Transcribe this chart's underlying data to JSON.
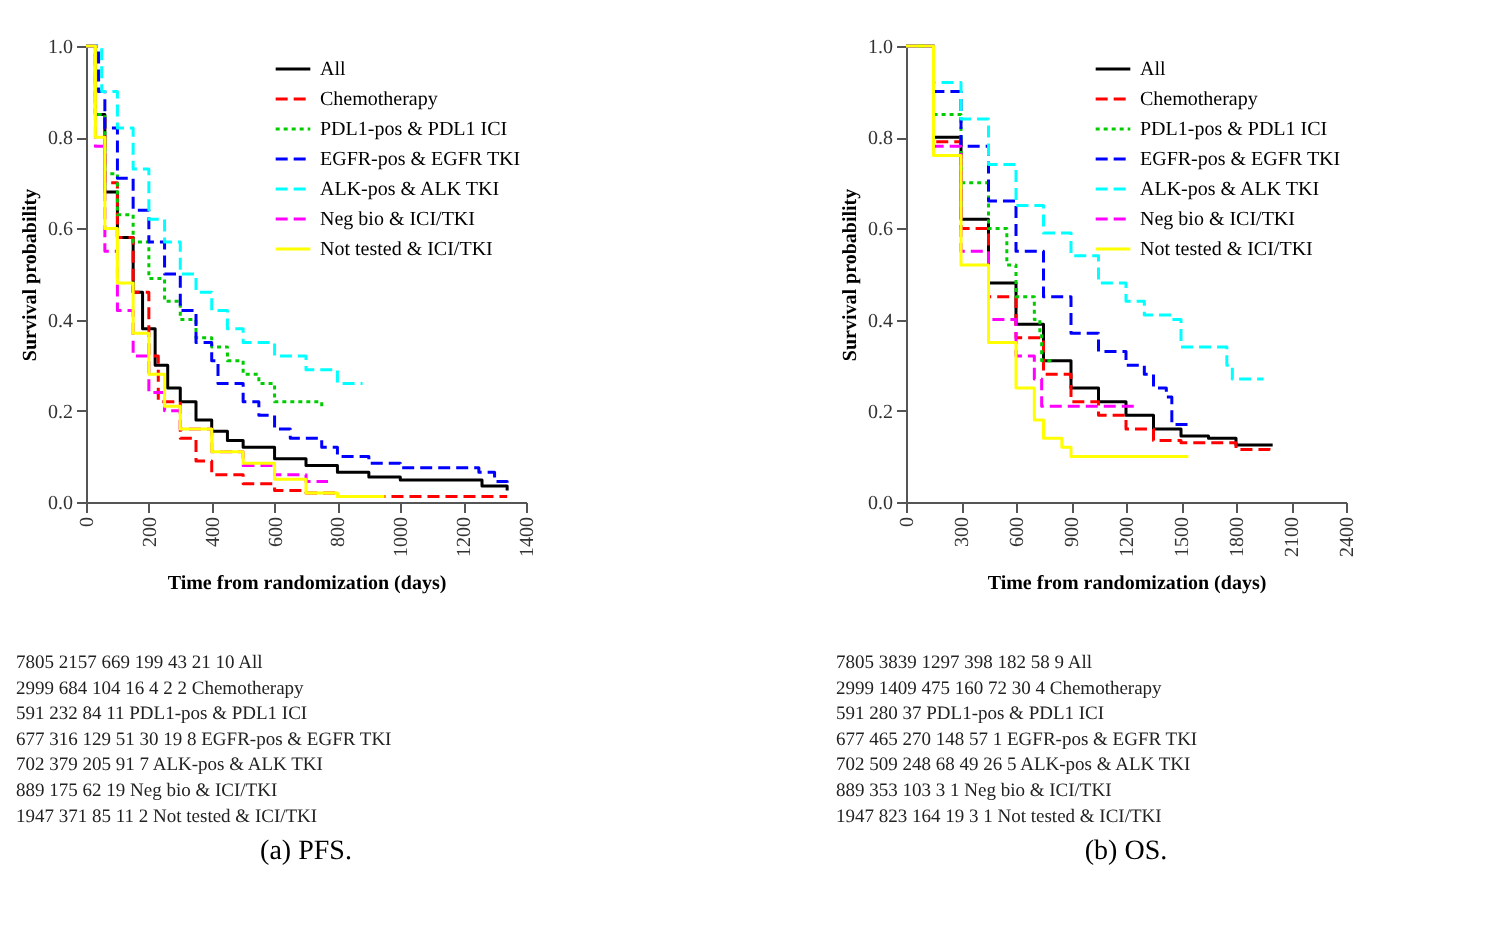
{
  "chart_data": [
    {
      "type": "step",
      "title": "(a) PFS.",
      "xlabel": "Time from randomization (days)",
      "ylabel": "Survival probability",
      "xlim": [
        0,
        1400
      ],
      "ylim": [
        0,
        1
      ],
      "xticks": [
        0,
        200,
        400,
        600,
        800,
        1000,
        1200,
        1400
      ],
      "yticks": [
        {
          "value": 0,
          "label": "0.0"
        },
        {
          "value": 0.2,
          "label": "0.2"
        },
        {
          "value": 0.4,
          "label": "0.4"
        },
        {
          "value": 0.6,
          "label": "0.6"
        },
        {
          "value": 0.8,
          "label": "0.8"
        },
        {
          "value": 1,
          "label": "1.0"
        }
      ],
      "legend": "top right",
      "series": [
        {
          "name": "All",
          "color": "#000000",
          "line_style": "solid",
          "x": [
            0,
            30,
            60,
            100,
            150,
            180,
            220,
            260,
            300,
            350,
            400,
            450,
            500,
            600,
            700,
            800,
            900,
            1000,
            1260,
            1340
          ],
          "values": [
            1.0,
            0.85,
            0.68,
            0.58,
            0.46,
            0.38,
            0.3,
            0.25,
            0.22,
            0.18,
            0.155,
            0.135,
            0.12,
            0.095,
            0.08,
            0.065,
            0.055,
            0.048,
            0.035,
            0.025
          ]
        },
        {
          "name": "Chemotherapy",
          "color": "#ff0000",
          "line_style": "dashed",
          "x": [
            0,
            30,
            60,
            100,
            150,
            200,
            230,
            300,
            350,
            400,
            500,
            600,
            700,
            800,
            1340
          ],
          "values": [
            1.0,
            0.85,
            0.7,
            0.58,
            0.46,
            0.32,
            0.22,
            0.14,
            0.09,
            0.06,
            0.04,
            0.025,
            0.02,
            0.012,
            0.012
          ]
        },
        {
          "name": "PDL1-pos & PDL1 ICI",
          "color": "#00cc00",
          "line_style": "dotted",
          "x": [
            0,
            30,
            60,
            100,
            150,
            200,
            250,
            300,
            350,
            400,
            450,
            500,
            550,
            600,
            750
          ],
          "values": [
            1.0,
            0.85,
            0.72,
            0.63,
            0.57,
            0.49,
            0.44,
            0.4,
            0.36,
            0.34,
            0.31,
            0.28,
            0.26,
            0.22,
            0.21
          ]
        },
        {
          "name": "EGFR-pos & EGFR TKI",
          "color": "#0000ff",
          "line_style": "dashed",
          "x": [
            0,
            40,
            60,
            100,
            150,
            200,
            250,
            300,
            350,
            400,
            420,
            500,
            550,
            600,
            650,
            750,
            800,
            900,
            1000,
            1250,
            1300,
            1340
          ],
          "values": [
            1.0,
            0.9,
            0.82,
            0.71,
            0.64,
            0.57,
            0.5,
            0.42,
            0.35,
            0.31,
            0.26,
            0.22,
            0.19,
            0.16,
            0.14,
            0.12,
            0.1,
            0.085,
            0.075,
            0.065,
            0.045,
            0.04
          ]
        },
        {
          "name": "ALK-pos & ALK TKI",
          "color": "#00ffff",
          "line_style": "dashed",
          "x": [
            0,
            50,
            100,
            150,
            200,
            250,
            300,
            350,
            400,
            450,
            500,
            600,
            700,
            800,
            880
          ],
          "values": [
            1.0,
            0.9,
            0.82,
            0.73,
            0.62,
            0.57,
            0.5,
            0.46,
            0.42,
            0.38,
            0.35,
            0.32,
            0.29,
            0.26,
            0.26
          ]
        },
        {
          "name": "Neg bio & ICI/TKI",
          "color": "#ff00ff",
          "line_style": "dashed",
          "x": [
            0,
            30,
            60,
            100,
            150,
            200,
            250,
            300,
            400,
            500,
            600,
            700,
            770
          ],
          "values": [
            1.0,
            0.78,
            0.55,
            0.42,
            0.32,
            0.24,
            0.2,
            0.16,
            0.11,
            0.08,
            0.06,
            0.045,
            0.045
          ]
        },
        {
          "name": "Not tested & ICI/TKI",
          "color": "#ffff00",
          "line_style": "solid",
          "x": [
            0,
            30,
            60,
            100,
            150,
            200,
            250,
            300,
            400,
            500,
            600,
            700,
            800,
            950
          ],
          "values": [
            1.0,
            0.8,
            0.6,
            0.48,
            0.37,
            0.28,
            0.21,
            0.16,
            0.11,
            0.085,
            0.05,
            0.02,
            0.012,
            0.012
          ]
        }
      ],
      "annotations": [
        "7805 2157 669 199 43 21 10 All",
        "2999 684 104 16 4 2 2 Chemotherapy",
        "591 232 84 11 PDL1-pos & PDL1 ICI",
        "677 316 129 51 30 19 8 EGFR-pos & EGFR TKI",
        "702 379 205 91 7 ALK-pos & ALK TKI",
        "889 175 62 19 Neg bio & ICI/TKI",
        "1947 371 85 11 2 Not tested & ICI/TKI"
      ]
    },
    {
      "type": "step",
      "title": "(b) OS.",
      "xlabel": "Time from randomization (days)",
      "ylabel": "Survival probability",
      "xlim": [
        0,
        2400
      ],
      "ylim": [
        0,
        1
      ],
      "xticks": [
        0,
        300,
        600,
        900,
        1200,
        1500,
        1800,
        2100,
        2400
      ],
      "yticks": [
        {
          "value": 0,
          "label": "0.0"
        },
        {
          "value": 0.2,
          "label": "0.2"
        },
        {
          "value": 0.4,
          "label": "0.4"
        },
        {
          "value": 0.6,
          "label": "0.6"
        },
        {
          "value": 0.8,
          "label": "0.8"
        },
        {
          "value": 1,
          "label": "1.0"
        }
      ],
      "legend": "top right",
      "series": [
        {
          "name": "All",
          "color": "#000000",
          "line_style": "solid",
          "x": [
            0,
            150,
            300,
            450,
            600,
            750,
            900,
            1050,
            1200,
            1350,
            1500,
            1650,
            1800,
            2000
          ],
          "values": [
            1.0,
            0.8,
            0.62,
            0.48,
            0.39,
            0.31,
            0.25,
            0.22,
            0.19,
            0.16,
            0.145,
            0.14,
            0.125,
            0.125
          ]
        },
        {
          "name": "Chemotherapy",
          "color": "#ff0000",
          "line_style": "dashed",
          "x": [
            0,
            150,
            300,
            450,
            600,
            750,
            900,
            1050,
            1200,
            1350,
            1500,
            1800,
            1980
          ],
          "values": [
            1.0,
            0.79,
            0.6,
            0.45,
            0.36,
            0.28,
            0.22,
            0.19,
            0.16,
            0.135,
            0.13,
            0.115,
            0.12
          ]
        },
        {
          "name": "PDL1-pos & PDL1 ICI",
          "color": "#00cc00",
          "line_style": "dotted",
          "x": [
            0,
            150,
            300,
            450,
            550,
            600,
            700,
            730,
            740,
            800
          ],
          "values": [
            1.0,
            0.85,
            0.7,
            0.6,
            0.52,
            0.45,
            0.4,
            0.37,
            0.31,
            0.31
          ]
        },
        {
          "name": "EGFR-pos & EGFR TKI",
          "color": "#0000ff",
          "line_style": "dashed",
          "x": [
            0,
            150,
            300,
            450,
            600,
            750,
            900,
            1050,
            1200,
            1300,
            1350,
            1420,
            1450,
            1550
          ],
          "values": [
            1.0,
            0.9,
            0.78,
            0.66,
            0.55,
            0.45,
            0.37,
            0.33,
            0.3,
            0.28,
            0.25,
            0.23,
            0.17,
            0.17
          ]
        },
        {
          "name": "ALK-pos & ALK TKI",
          "color": "#00ffff",
          "line_style": "dashed",
          "x": [
            0,
            150,
            300,
            450,
            600,
            750,
            900,
            1050,
            1200,
            1300,
            1450,
            1500,
            1650,
            1750,
            1780,
            1950
          ],
          "values": [
            1.0,
            0.92,
            0.84,
            0.74,
            0.65,
            0.59,
            0.54,
            0.48,
            0.44,
            0.41,
            0.4,
            0.34,
            0.34,
            0.3,
            0.27,
            0.27
          ]
        },
        {
          "name": "Neg bio & ICI/TKI",
          "color": "#ff00ff",
          "line_style": "dashed",
          "x": [
            0,
            150,
            300,
            450,
            600,
            700,
            740,
            1000,
            1250
          ],
          "values": [
            1.0,
            0.78,
            0.55,
            0.4,
            0.32,
            0.27,
            0.21,
            0.21,
            0.21
          ]
        },
        {
          "name": "Not tested & ICI/TKI",
          "color": "#ffff00",
          "line_style": "solid",
          "x": [
            0,
            150,
            300,
            450,
            600,
            700,
            750,
            850,
            900,
            1540
          ],
          "values": [
            1.0,
            0.76,
            0.52,
            0.35,
            0.25,
            0.18,
            0.14,
            0.12,
            0.1,
            0.1
          ]
        }
      ],
      "annotations": [
        "7805 3839 1297 398 182 58 9 All",
        "2999 1409 475 160 72 30 4 Chemotherapy",
        "591 280 37 PDL1-pos & PDL1 ICI",
        "677 465 270 148 57 1 EGFR-pos & EGFR TKI",
        "702 509 248 68 49 26 5 ALK-pos & ALK TKI",
        "889 353 103 3 1 Neg bio & ICI/TKI",
        "1947 823 164 19 3 1 Not tested & ICI/TKI"
      ]
    }
  ]
}
